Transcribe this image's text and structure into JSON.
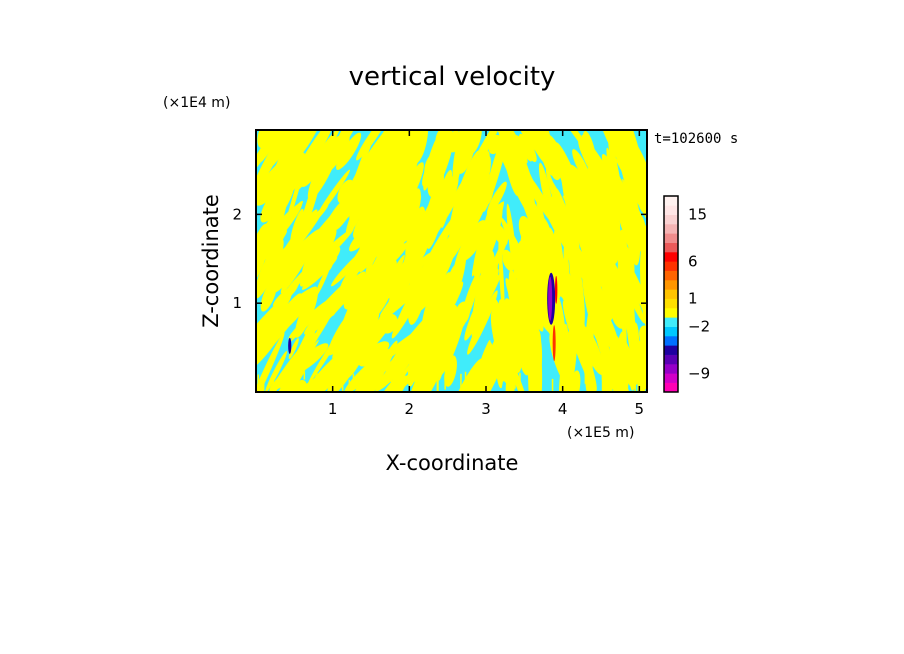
{
  "chart_data": {
    "type": "heatmap",
    "title": "vertical velocity",
    "xlabel": "X-coordinate",
    "ylabel": "Z-coordinate",
    "x_unit": "(×1E5 m)",
    "y_unit": "(×1E4 m)",
    "time_label": "t=102600 s",
    "xlim": [
      0.0,
      5.1
    ],
    "ylim": [
      0.0,
      2.95
    ],
    "xticks": [
      1,
      2,
      3,
      4,
      5
    ],
    "xtick_labels": [
      "1",
      "2",
      "3",
      "4",
      "5"
    ],
    "yticks": [
      1,
      2
    ],
    "ytick_labels": [
      "1",
      "2"
    ],
    "field_description": "alternating positive (yellow) and negative (cyan) vertical-velocity bands tilted across the domain, with a strong updraft/downdraft core near x=3.85, z=0.3-1.4",
    "colorbar": {
      "levels": [
        -12,
        -10.5,
        -9,
        -7.5,
        -6,
        -4.5,
        -3,
        -2,
        -1,
        0,
        1,
        2,
        3,
        4.5,
        6,
        7.5,
        9,
        10.5,
        12,
        15,
        18,
        25
      ],
      "colors": [
        "#ff00b4",
        "#d200c8",
        "#9600c8",
        "#5a00b4",
        "#1e00a0",
        "#0070ff",
        "#00c8ff",
        "#40ecfa",
        "#ffff00",
        "#ffe000",
        "#ffc400",
        "#ff9600",
        "#ff6400",
        "#ff3200",
        "#ff0000",
        "#eb5a5a",
        "#f08c8c",
        "#f5b4b4",
        "#fad2d2",
        "#ffe6e6",
        "#fff2f0"
      ],
      "tick_values": [
        15,
        6,
        1,
        -2,
        -9
      ],
      "tick_labels": [
        "15",
        "6",
        "1",
        "−2",
        "−9"
      ]
    }
  }
}
